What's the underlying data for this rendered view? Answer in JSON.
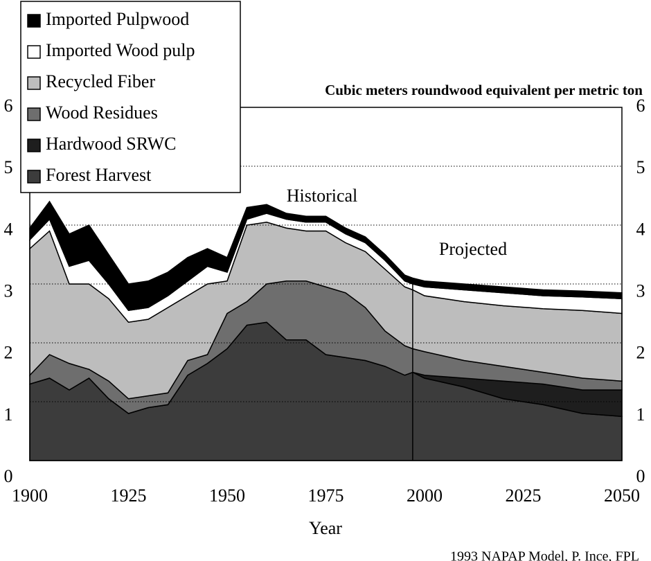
{
  "chart_data": {
    "type": "stacked-area",
    "x_label": "Year",
    "y_label": "Cubic meters roundwood equivalent per metric ton",
    "annotations": [
      "Historical",
      "Projected"
    ],
    "source": "1993 NAPAP Model, P. Ince, FPL",
    "x": [
      1900,
      1905,
      1910,
      1915,
      1920,
      1925,
      1930,
      1935,
      1940,
      1945,
      1950,
      1955,
      1960,
      1965,
      1970,
      1975,
      1980,
      1985,
      1990,
      1995,
      1997,
      2000,
      2010,
      2020,
      2030,
      2040,
      2050
    ],
    "series": [
      {
        "name": "Forest Harvest",
        "color": "#3c3c3c",
        "values": [
          1.3,
          1.4,
          1.2,
          1.4,
          1.05,
          0.8,
          0.9,
          0.95,
          1.45,
          1.65,
          1.9,
          2.3,
          2.35,
          2.05,
          2.05,
          1.8,
          1.75,
          1.7,
          1.6,
          1.45,
          1.5,
          1.4,
          1.25,
          1.05,
          0.95,
          0.8,
          0.75
        ]
      },
      {
        "name": "Hardwood SRWC",
        "color": "#1e1e1e",
        "values": [
          0,
          0,
          0,
          0,
          0,
          0,
          0,
          0,
          0,
          0,
          0,
          0,
          0,
          0,
          0,
          0,
          0,
          0,
          0,
          0,
          0,
          0.05,
          0.15,
          0.3,
          0.35,
          0.4,
          0.45
        ]
      },
      {
        "name": "Wood Residues",
        "color": "#6e6e6e",
        "values": [
          0.15,
          0.4,
          0.45,
          0.15,
          0.3,
          0.25,
          0.2,
          0.2,
          0.25,
          0.15,
          0.6,
          0.4,
          0.65,
          1.0,
          1.0,
          1.15,
          1.1,
          0.9,
          0.6,
          0.5,
          0.4,
          0.4,
          0.3,
          0.25,
          0.2,
          0.2,
          0.15
        ]
      },
      {
        "name": "Recycled Fiber",
        "color": "#bdbdbd",
        "values": [
          2.15,
          2.1,
          1.35,
          1.45,
          1.4,
          1.3,
          1.3,
          1.45,
          1.1,
          1.2,
          0.55,
          1.3,
          1.05,
          0.9,
          0.85,
          0.95,
          0.85,
          0.95,
          1.05,
          1.0,
          1.0,
          0.95,
          1.0,
          1.03,
          1.08,
          1.15,
          1.15
        ]
      },
      {
        "name": "Imported Wood pulp",
        "color": "#ffffff",
        "values": [
          0.15,
          0.2,
          0.3,
          0.4,
          0.25,
          0.2,
          0.2,
          0.2,
          0.25,
          0.3,
          0.15,
          0.1,
          0.15,
          0.15,
          0.15,
          0.15,
          0.15,
          0.15,
          0.15,
          0.1,
          0.1,
          0.15,
          0.2,
          0.22,
          0.22,
          0.23,
          0.25
        ]
      },
      {
        "name": "Imported Pulpwood",
        "color": "#000000",
        "values": [
          0.2,
          0.3,
          0.55,
          0.6,
          0.5,
          0.45,
          0.45,
          0.4,
          0.4,
          0.3,
          0.25,
          0.2,
          0.15,
          0.1,
          0.1,
          0.1,
          0.1,
          0.1,
          0.1,
          0.1,
          0.1,
          0.1,
          0.1,
          0.1,
          0.1,
          0.1,
          0.1
        ]
      }
    ],
    "xlim": [
      1900,
      2050
    ],
    "xticks": [
      1900,
      1925,
      1950,
      1975,
      2000,
      2025,
      2050
    ],
    "ylim": [
      0,
      6
    ],
    "yticks": [
      0,
      1,
      2,
      3,
      4,
      5,
      6
    ],
    "grid": true,
    "legend": "top-left",
    "divider_x": 1997
  }
}
